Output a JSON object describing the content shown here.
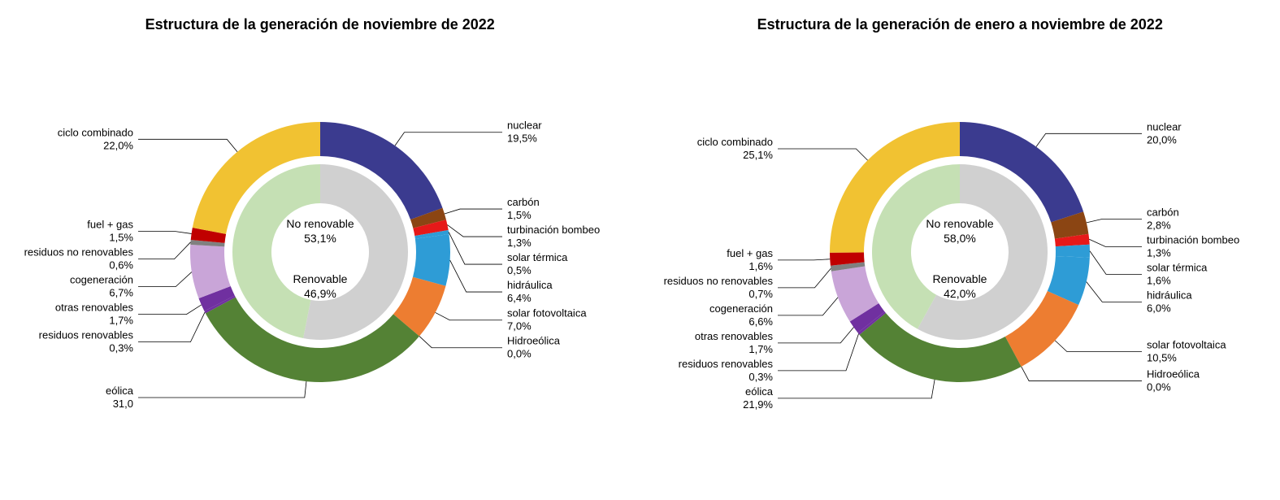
{
  "background_color": "#ffffff",
  "title_fontsize": 18,
  "label_fontsize": 13,
  "inner_label_fontsize": 14,
  "charts": [
    {
      "title": "Estructura de la generación de noviembre de 2022",
      "outer_ring": {
        "outer_radius": 160,
        "inner_radius": 118
      },
      "inner_ring": {
        "outer_radius": 108,
        "inner_radius": 60,
        "colors": [
          "#d0d0d0",
          "#c5e0b4"
        ]
      },
      "inner": [
        {
          "label": "No renovable",
          "pct": "53,1%",
          "value": 53.1
        },
        {
          "label": "Renovable",
          "pct": "46,9%",
          "value": 46.9
        }
      ],
      "slices": [
        {
          "label": "nuclear",
          "pct": "19,5%",
          "value": 19.5,
          "color": "#3b3b8f"
        },
        {
          "label": "carbón",
          "pct": "1,5%",
          "value": 1.5,
          "color": "#8b4513"
        },
        {
          "label": "turbinación bombeo",
          "pct": "1,3%",
          "value": 1.3,
          "color": "#e61919"
        },
        {
          "label": "solar térmica",
          "pct": "0,5%",
          "value": 0.5,
          "color": "#2e9cd6"
        },
        {
          "label": "hidráulica",
          "pct": "6,4%",
          "value": 6.4,
          "color": "#2e9cd6"
        },
        {
          "label": "solar fotovoltaica",
          "pct": "7,0%",
          "value": 7.0,
          "color": "#ed7d31"
        },
        {
          "label": "Hidroeólica",
          "pct": "0,0%",
          "value": 0.0,
          "color": "#548235"
        },
        {
          "label": "eólica",
          "pct": "31,0",
          "value": 31.0,
          "color": "#548235"
        },
        {
          "label": "residuos renovables",
          "pct": "0,3%",
          "value": 0.3,
          "color": "#7030a0"
        },
        {
          "label": "otras renovables",
          "pct": "1,7%",
          "value": 1.7,
          "color": "#7030a0"
        },
        {
          "label": "cogeneración",
          "pct": "6,7%",
          "value": 6.7,
          "color": "#c9a5d8"
        },
        {
          "label": "residuos no renovables",
          "pct": "0,6%",
          "value": 0.6,
          "color": "#808080"
        },
        {
          "label": "fuel + gas",
          "pct": "1,5%",
          "value": 1.5,
          "color": "#c00000"
        },
        {
          "label": "ciclo combinado",
          "pct": "22,0%",
          "value": 22.0,
          "color": "#f1c232"
        }
      ]
    },
    {
      "title": "Estructura de la generación de enero a noviembre de 2022",
      "outer_ring": {
        "outer_radius": 160,
        "inner_radius": 118
      },
      "inner_ring": {
        "outer_radius": 108,
        "inner_radius": 60,
        "colors": [
          "#d0d0d0",
          "#c5e0b4"
        ]
      },
      "inner": [
        {
          "label": "No renovable",
          "pct": "58,0%",
          "value": 58.0
        },
        {
          "label": "Renovable",
          "pct": "42,0%",
          "value": 42.0
        }
      ],
      "slices": [
        {
          "label": "nuclear",
          "pct": "20,0%",
          "value": 20.0,
          "color": "#3b3b8f"
        },
        {
          "label": "carbón",
          "pct": "2,8%",
          "value": 2.8,
          "color": "#8b4513"
        },
        {
          "label": "turbinación bombeo",
          "pct": "1,3%",
          "value": 1.3,
          "color": "#e61919"
        },
        {
          "label": "solar térmica",
          "pct": "1,6%",
          "value": 1.6,
          "color": "#2e9cd6"
        },
        {
          "label": "hidráulica",
          "pct": "6,0%",
          "value": 6.0,
          "color": "#2e9cd6"
        },
        {
          "label": "solar fotovoltaica",
          "pct": "10,5%",
          "value": 10.5,
          "color": "#ed7d31"
        },
        {
          "label": "Hidroeólica",
          "pct": "0,0%",
          "value": 0.0,
          "color": "#548235"
        },
        {
          "label": "eólica",
          "pct": "21,9%",
          "value": 21.9,
          "color": "#548235"
        },
        {
          "label": "residuos renovables",
          "pct": "0,3%",
          "value": 0.3,
          "color": "#7030a0"
        },
        {
          "label": "otras renovables",
          "pct": "1,7%",
          "value": 1.7,
          "color": "#7030a0"
        },
        {
          "label": "cogeneración",
          "pct": "6,6%",
          "value": 6.6,
          "color": "#c9a5d8"
        },
        {
          "label": "residuos no renovables",
          "pct": "0,7%",
          "value": 0.7,
          "color": "#808080"
        },
        {
          "label": "fuel + gas",
          "pct": "1,6%",
          "value": 1.6,
          "color": "#c00000"
        },
        {
          "label": "ciclo combinado",
          "pct": "25,1%",
          "value": 25.1,
          "color": "#f1c232"
        }
      ]
    }
  ]
}
